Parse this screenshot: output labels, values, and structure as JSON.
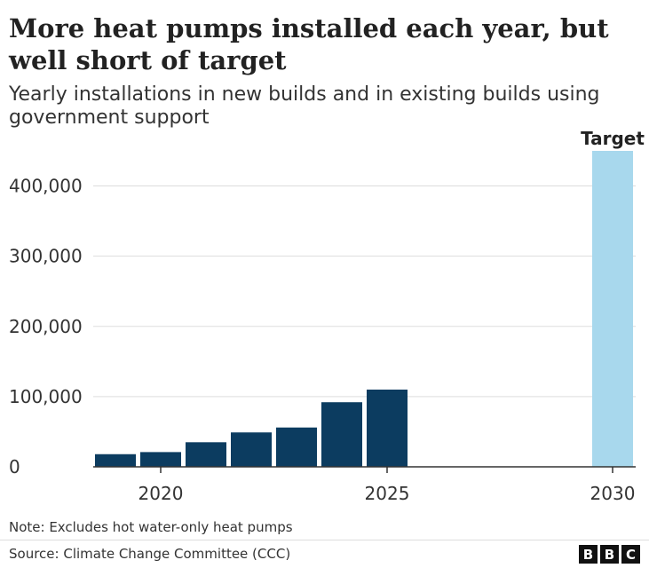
{
  "title": "More heat pumps installed each year, but well short of target",
  "subtitle": "Yearly installations in new builds and in existing builds using government support",
  "note": "Note: Excludes hot water-only heat pumps",
  "source": "Source: Climate Change Committee (CCC)",
  "logo": [
    "B",
    "B",
    "C"
  ],
  "colors": {
    "actual": "#0c3c60",
    "target": "#a8d8ed",
    "grid": "#dddddd",
    "axis": "#333333"
  },
  "chart_data": {
    "type": "bar",
    "x": [
      2019,
      2020,
      2021,
      2022,
      2023,
      2024,
      2025,
      2030
    ],
    "values": [
      18000,
      21000,
      35000,
      49000,
      56000,
      92000,
      110000,
      450000
    ],
    "target_year": 2030,
    "target_label": "Target",
    "xlabel": "",
    "ylabel": "",
    "xticks": [
      2020,
      2025,
      2030
    ],
    "xtick_labels": [
      "2020",
      "2025",
      "2030"
    ],
    "yticks": [
      0,
      100000,
      200000,
      300000,
      400000
    ],
    "ytick_labels": [
      "0",
      "100,000",
      "200,000",
      "300,000",
      "400,000"
    ],
    "ylim": [
      0,
      450000
    ],
    "grid": true,
    "legend": "none"
  }
}
